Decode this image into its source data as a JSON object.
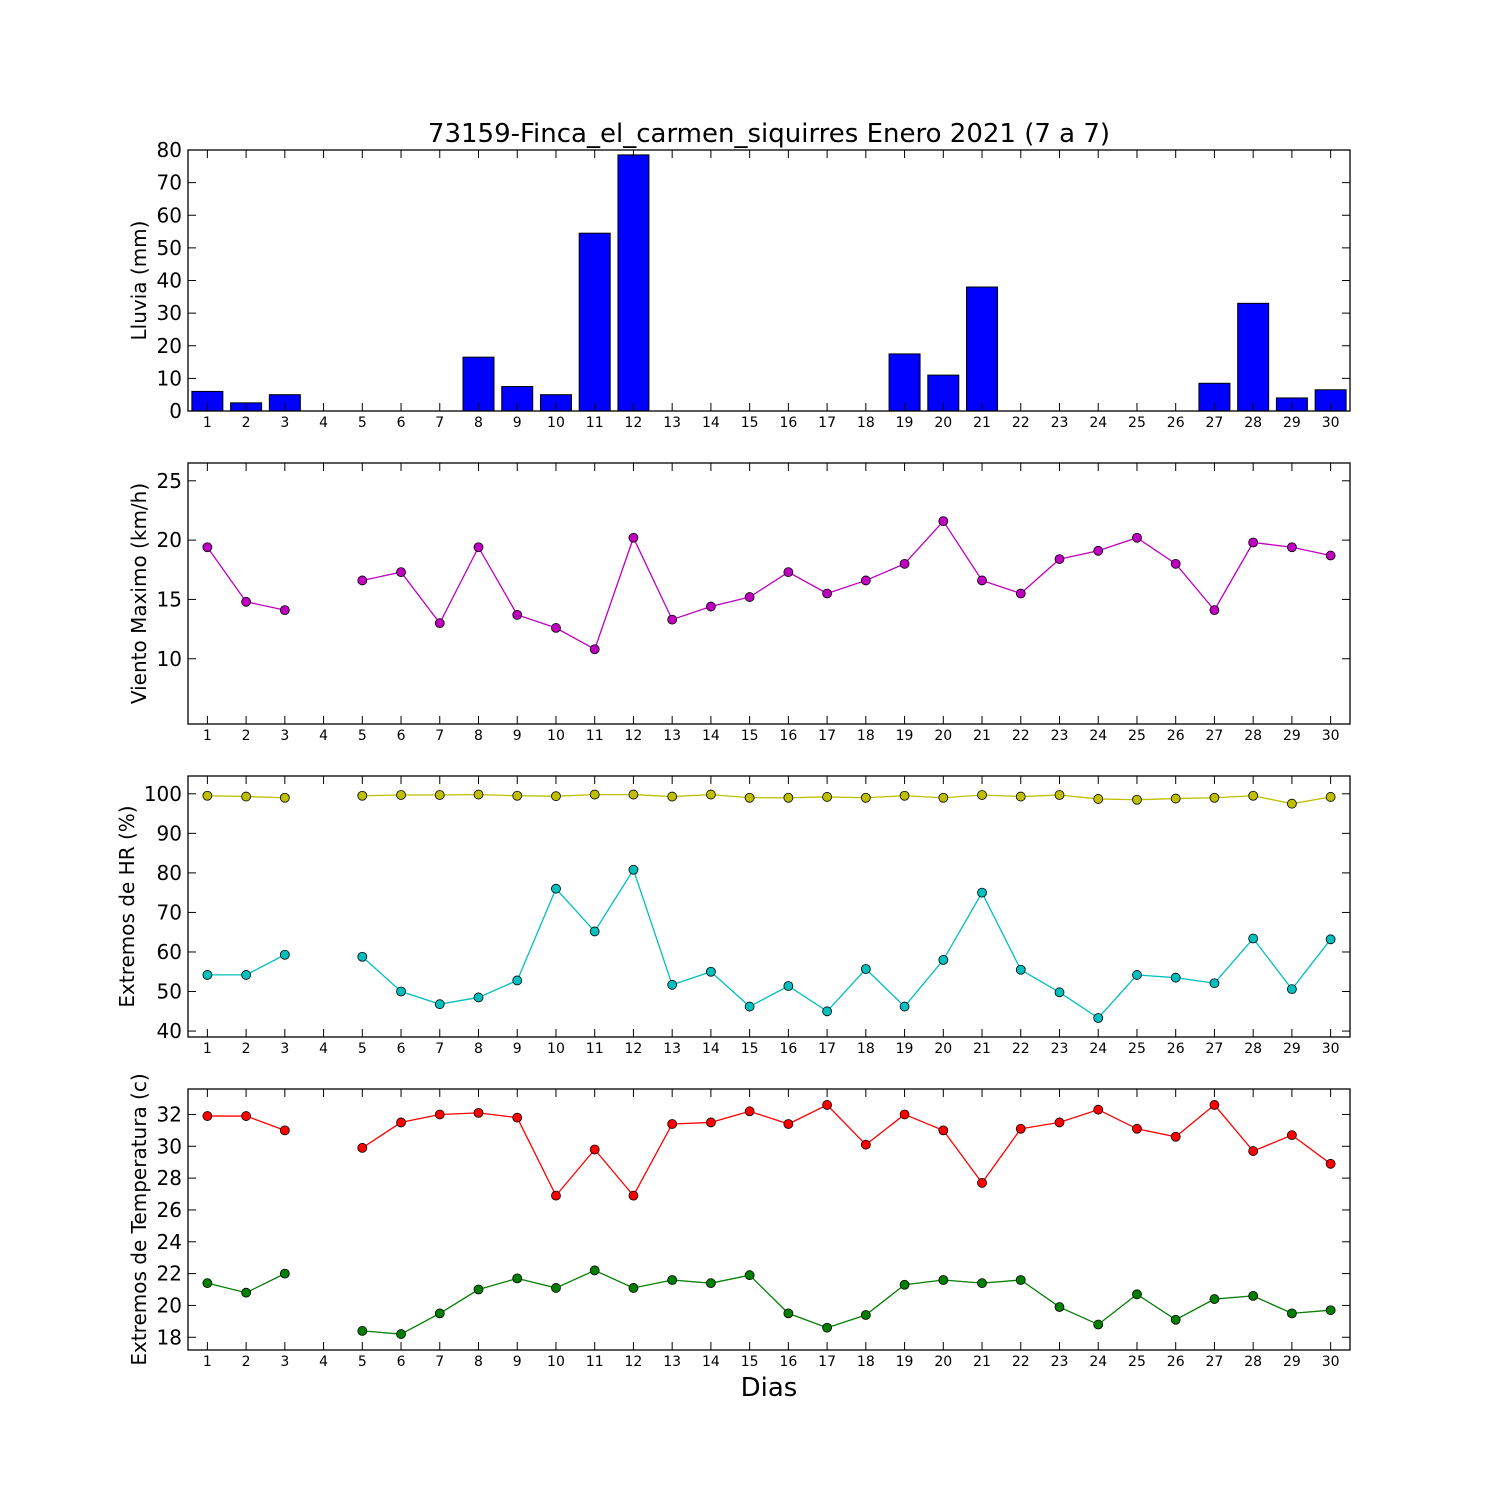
{
  "chart_data": [
    {
      "type": "bar",
      "title": "73159-Finca_el_carmen_siquirres Enero 2021  (7 a 7)",
      "ylabel": "Lluvia (mm)",
      "xlabel": "",
      "ylim": [
        0,
        80
      ],
      "yticks": [
        0,
        10,
        20,
        30,
        40,
        50,
        60,
        70,
        80
      ],
      "xlim": [
        0.5,
        30.5
      ],
      "x": [
        1,
        2,
        3,
        4,
        5,
        6,
        7,
        8,
        9,
        10,
        11,
        12,
        13,
        14,
        15,
        16,
        17,
        18,
        19,
        20,
        21,
        22,
        23,
        24,
        25,
        26,
        27,
        28,
        29,
        30
      ],
      "series": [
        {
          "color": "#0000ff",
          "values": [
            6,
            2.5,
            5,
            0,
            0,
            0,
            0,
            16.5,
            7.5,
            5,
            54.5,
            78.5,
            0,
            0,
            0,
            0,
            0,
            0,
            17.5,
            11,
            38,
            0,
            0,
            0,
            0,
            0,
            8.5,
            33,
            4,
            6.5
          ]
        }
      ]
    },
    {
      "type": "line",
      "title": "",
      "ylabel": "Viento Maximo (km/h)",
      "xlabel": "",
      "ylim": [
        4.5,
        26.5
      ],
      "yticks": [
        10,
        15,
        20,
        25
      ],
      "xlim": [
        0.5,
        30.5
      ],
      "x": [
        1,
        2,
        3,
        4,
        5,
        6,
        7,
        8,
        9,
        10,
        11,
        12,
        13,
        14,
        15,
        16,
        17,
        18,
        19,
        20,
        21,
        22,
        23,
        24,
        25,
        26,
        27,
        28,
        29,
        30
      ],
      "series": [
        {
          "color": "#bf00bf",
          "values": [
            19.4,
            14.8,
            14.1,
            null,
            16.6,
            17.3,
            13,
            19.4,
            13.7,
            12.6,
            10.8,
            20.2,
            13.3,
            14.4,
            15.2,
            17.3,
            15.5,
            16.6,
            18,
            21.6,
            16.6,
            15.5,
            18.4,
            19.1,
            20.2,
            18,
            14.1,
            19.8,
            19.4,
            18.7
          ]
        }
      ]
    },
    {
      "type": "line",
      "title": "",
      "ylabel": "Extremos de HR (%)",
      "xlabel": "",
      "ylim": [
        38.5,
        104.5
      ],
      "yticks": [
        40,
        50,
        60,
        70,
        80,
        90,
        100
      ],
      "xlim": [
        0.5,
        30.5
      ],
      "x": [
        1,
        2,
        3,
        4,
        5,
        6,
        7,
        8,
        9,
        10,
        11,
        12,
        13,
        14,
        15,
        16,
        17,
        18,
        19,
        20,
        21,
        22,
        23,
        24,
        25,
        26,
        27,
        28,
        29,
        30
      ],
      "series": [
        {
          "color": "#bfbf00",
          "values": [
            99.5,
            99.3,
            99,
            null,
            99.5,
            99.7,
            99.7,
            99.8,
            99.5,
            99.4,
            99.8,
            99.8,
            99.3,
            99.8,
            99,
            99,
            99.2,
            99,
            99.5,
            99,
            99.7,
            99.3,
            99.7,
            98.7,
            98.5,
            98.8,
            99,
            99.5,
            97.5,
            99.2
          ]
        },
        {
          "color": "#00bfbf",
          "values": [
            54.2,
            54.2,
            59.3,
            null,
            58.8,
            50,
            46.8,
            48.5,
            52.8,
            76,
            65.2,
            80.8,
            51.7,
            55,
            46.2,
            51.4,
            45,
            55.7,
            46.2,
            58,
            75,
            55.5,
            49.8,
            43.3,
            54.2,
            53.5,
            52.1,
            63.4,
            50.6,
            63.2
          ]
        }
      ]
    },
    {
      "type": "line",
      "title": "",
      "ylabel": "Extremos de Temperatura (c)",
      "xlabel": "Dias",
      "ylim": [
        17.2,
        33.6
      ],
      "yticks": [
        18,
        20,
        22,
        24,
        26,
        28,
        30,
        32
      ],
      "xlim": [
        0.5,
        30.5
      ],
      "x": [
        1,
        2,
        3,
        4,
        5,
        6,
        7,
        8,
        9,
        10,
        11,
        12,
        13,
        14,
        15,
        16,
        17,
        18,
        19,
        20,
        21,
        22,
        23,
        24,
        25,
        26,
        27,
        28,
        29,
        30
      ],
      "series": [
        {
          "color": "#ff0000",
          "values": [
            31.9,
            31.9,
            31,
            null,
            29.9,
            31.5,
            32,
            32.1,
            31.8,
            26.9,
            29.8,
            26.9,
            31.4,
            31.5,
            32.2,
            31.4,
            32.6,
            30.1,
            32,
            31,
            27.7,
            31.1,
            31.5,
            32.3,
            31.1,
            30.6,
            32.6,
            29.7,
            30.7,
            28.9
          ]
        },
        {
          "color": "#007f00",
          "values": [
            21.4,
            20.8,
            22,
            null,
            18.4,
            18.2,
            19.5,
            21,
            21.7,
            21.1,
            22.2,
            21.1,
            21.6,
            21.4,
            21.9,
            19.5,
            18.6,
            19.4,
            21.3,
            21.6,
            21.4,
            21.6,
            19.9,
            18.8,
            20.7,
            19.1,
            20.4,
            20.6,
            19.5,
            19.7
          ]
        }
      ]
    }
  ]
}
